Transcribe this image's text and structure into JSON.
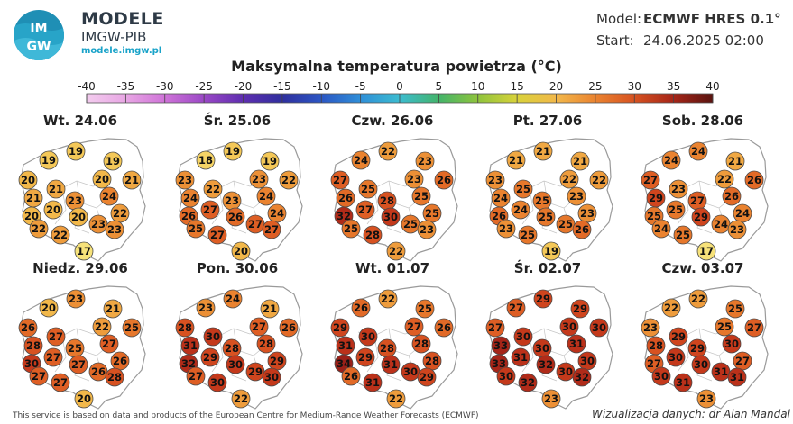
{
  "header": {
    "brand_title": "MODELE",
    "brand_sub": "IMGW-PIB",
    "brand_url": "modele.imgw.pl",
    "model_label": "Model:",
    "model_value": "ECMWF HRES 0.1°",
    "start_label": "Start:",
    "start_value": "24.06.2025 02:00"
  },
  "title": "Maksymalna temperatura powietrza (°C)",
  "colorbar": {
    "ticks": [
      -40,
      -35,
      -30,
      -25,
      -20,
      -15,
      -10,
      -5,
      0,
      5,
      10,
      15,
      20,
      25,
      30,
      35,
      40
    ]
  },
  "colors": {
    "t17": "#f7e27a",
    "t18": "#f6d466",
    "t19": "#f4c858",
    "t20": "#f2b84a",
    "t21": "#f0a843",
    "t22": "#ee9c3c",
    "t23": "#ec9036",
    "t24": "#ea8330",
    "t25": "#e6772b",
    "t26": "#e26a27",
    "t27": "#de5e24",
    "t28": "#d75221",
    "t29": "#cf451e",
    "t30": "#c4391b",
    "t31": "#bb311a",
    "t32": "#b02b19",
    "t33": "#a52518",
    "t34": "#9a2018",
    "poland_fill": "#ffffff",
    "border": "#9a9a9a"
  },
  "forecasts": [
    {
      "day": "Wt. 24.06",
      "temps": [
        19,
        19,
        19,
        20,
        20,
        21,
        21,
        21,
        23,
        24,
        20,
        20,
        22,
        22,
        20,
        22,
        23,
        23,
        17
      ]
    },
    {
      "day": "Śr. 25.06",
      "temps": [
        18,
        19,
        19,
        23,
        23,
        22,
        22,
        24,
        23,
        24,
        26,
        27,
        24,
        25,
        26,
        27,
        27,
        27,
        20
      ]
    },
    {
      "day": "Czw. 26.06",
      "temps": [
        24,
        22,
        23,
        27,
        23,
        26,
        25,
        26,
        28,
        25,
        32,
        27,
        25,
        25,
        30,
        28,
        25,
        23,
        22
      ]
    },
    {
      "day": "Pt. 27.06",
      "temps": [
        21,
        21,
        21,
        23,
        22,
        22,
        25,
        24,
        25,
        23,
        26,
        24,
        23,
        23,
        25,
        25,
        25,
        26,
        19
      ]
    },
    {
      "day": "Sob. 28.06",
      "temps": [
        24,
        24,
        21,
        27,
        22,
        26,
        23,
        29,
        27,
        26,
        25,
        25,
        24,
        24,
        29,
        25,
        24,
        23,
        17
      ]
    },
    {
      "day": "Niedz. 29.06",
      "temps": [
        20,
        23,
        21,
        26,
        22,
        25,
        27,
        28,
        25,
        27,
        30,
        27,
        26,
        27,
        27,
        27,
        26,
        28,
        20
      ]
    },
    {
      "day": "Pon. 30.06",
      "temps": [
        23,
        24,
        21,
        28,
        27,
        26,
        30,
        31,
        28,
        28,
        32,
        29,
        29,
        27,
        30,
        30,
        29,
        30,
        22
      ]
    },
    {
      "day": "Wt. 01.07",
      "temps": [
        26,
        22,
        25,
        29,
        27,
        26,
        30,
        31,
        28,
        28,
        34,
        29,
        28,
        26,
        31,
        31,
        30,
        29,
        22
      ]
    },
    {
      "day": "Śr. 02.07",
      "temps": [
        27,
        29,
        29,
        27,
        30,
        30,
        30,
        33,
        30,
        31,
        33,
        31,
        30,
        30,
        32,
        32,
        30,
        32,
        23
      ]
    },
    {
      "day": "Czw. 03.07",
      "temps": [
        22,
        22,
        25,
        23,
        25,
        27,
        29,
        28,
        29,
        30,
        27,
        30,
        27,
        30,
        30,
        31,
        31,
        31,
        23
      ]
    }
  ],
  "footer": {
    "source": "This service is based on data and products of the European Centre for Medium-Range Weather Forecasts (ECMWF)",
    "credit": "Wizualizacja danych: dr Alan Mandal"
  }
}
